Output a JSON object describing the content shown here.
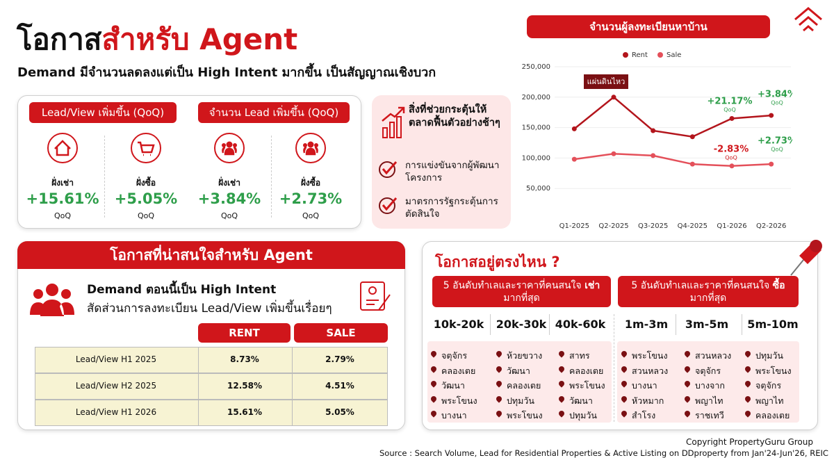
{
  "header": {
    "title_part1": "โอกาส",
    "title_part2": "สำหรับ Agent",
    "subtitle": "Demand มีจำนวนลดลงแต่เป็น High Intent มากขึ้น เป็นสัญญาณเชิงบวก"
  },
  "kpis": {
    "groups": [
      {
        "title": "Lead/View เพิ่มขึ้น (QoQ)",
        "items": [
          {
            "label": "ฝั่งเช่า",
            "value": "+15.61%",
            "unit": "QoQ"
          },
          {
            "label": "ฝั่งซื้อ",
            "value": "+5.05%",
            "unit": "QoQ"
          }
        ]
      },
      {
        "title": "จำนวน Lead เพิ่มขึ้น (QoQ)",
        "items": [
          {
            "label": "ฝั่งเช่า",
            "value": "+3.84%",
            "unit": "QoQ"
          },
          {
            "label": "ฝั่งซื้อ",
            "value": "+2.73%",
            "unit": "QoQ"
          }
        ]
      }
    ]
  },
  "drivers": {
    "title": "สิ่งที่ช่วยกระตุ้นให้ตลาดฟื้นตัวอย่างช้าๆ",
    "items": [
      "การแข่งขันจากผู้พัฒนาโครงการ",
      "มาตรการรัฐกระตุ้นการตัดสินใจ"
    ]
  },
  "opportunity": {
    "title": "โอกาสที่น่าสนใจสำหรับ Agent",
    "heading": "Demand ตอนนี้เป็น High Intent",
    "text": "สัดส่วนการลงทะเบียน Lead/View เพิ่มขึ้นเรื่อยๆ",
    "table": {
      "columns": [
        "RENT",
        "SALE"
      ],
      "rows": [
        [
          "Lead/View H1 2025",
          "8.73%",
          "2.79%"
        ],
        [
          "Lead/View H2 2025",
          "12.58%",
          "4.51%"
        ],
        [
          "Lead/View H1 2026",
          "15.61%",
          "5.05%"
        ]
      ]
    }
  },
  "where": {
    "title": "โอกาสอยู่ตรงไหน ?",
    "panels": [
      {
        "title_before": "5 อันดับทำเลและราคาที่คนสนใจ",
        "title_bold": "เช่า",
        "title_after": "มากที่สุด",
        "columns": [
          {
            "price": "10k-20k",
            "areas": [
              "จตุจักร",
              "คลองเตย",
              "วัฒนา",
              "พระโขนง",
              "บางนา"
            ]
          },
          {
            "price": "20k-30k",
            "areas": [
              "ห้วยขวาง",
              "วัฒนา",
              "คลองเตย",
              "ปทุมวัน",
              "พระโขนง"
            ]
          },
          {
            "price": "40k-60k",
            "areas": [
              "สาทร",
              "คลองเตย",
              "พระโขนง",
              "วัฒนา",
              "ปทุมวัน"
            ]
          }
        ]
      },
      {
        "title_before": "5 อันดับทำเลและราคาที่คนสนใจ",
        "title_bold": "ซื้อ",
        "title_after": "มากที่สุด",
        "columns": [
          {
            "price": "1m-3m",
            "areas": [
              "พระโขนง",
              "สวนหลวง",
              "บางนา",
              "หัวหมาก",
              "สำโรง"
            ]
          },
          {
            "price": "3m-5m",
            "areas": [
              "สวนหลวง",
              "จตุจักร",
              "บางจาก",
              "พญาไท",
              "ราชเทวี"
            ]
          },
          {
            "price": "5m-10m",
            "areas": [
              "ปทุมวัน",
              "พระโขนง",
              "จตุจักร",
              "พญาไท",
              "คลองเตย"
            ]
          }
        ]
      }
    ]
  },
  "footer": {
    "copyright": "Copyright  PropertyGuru Group",
    "source": "Source : Search Volume, Lead for Residential Properties & Active Listing on DDproperty from Jan'24-Jun'26, REIC"
  },
  "chart_data": {
    "type": "line",
    "title": "จำนวนผู้ลงทะเบียนหาบ้าน",
    "categories": [
      "Q1-2025",
      "Q2-2025",
      "Q3-2025",
      "Q4-2025",
      "Q1-2026",
      "Q2-2026"
    ],
    "series": [
      {
        "name": "Rent",
        "color": "#b3151c",
        "values": [
          148000,
          200000,
          145000,
          135000,
          165000,
          170000
        ]
      },
      {
        "name": "Sale",
        "color": "#e4505a",
        "values": [
          98000,
          107000,
          104000,
          90000,
          87000,
          90000
        ]
      }
    ],
    "ylim": [
      0,
      250000
    ],
    "yticks": [
      {
        "value": 50000,
        "label": "50,000"
      },
      {
        "value": 100000,
        "label": "100,000"
      },
      {
        "value": 150000,
        "label": "150,000"
      },
      {
        "value": 200000,
        "label": "200,000"
      },
      {
        "value": 250000,
        "label": "250,000"
      }
    ],
    "grid": true,
    "legend": "top",
    "annotations": [
      {
        "text": "แผ่นดินไหว",
        "color": "#7a1013"
      },
      {
        "text": "+21.17%",
        "note": "QoQ",
        "color": "#2e9e4a"
      },
      {
        "text": "+3.84%",
        "note": "QoQ",
        "color": "#2e9e4a"
      },
      {
        "text": "-2.83%",
        "note": "QoQ",
        "color": "#d0161b"
      },
      {
        "text": "+2.73%",
        "note": "QoQ",
        "color": "#2e9e4a"
      }
    ]
  }
}
